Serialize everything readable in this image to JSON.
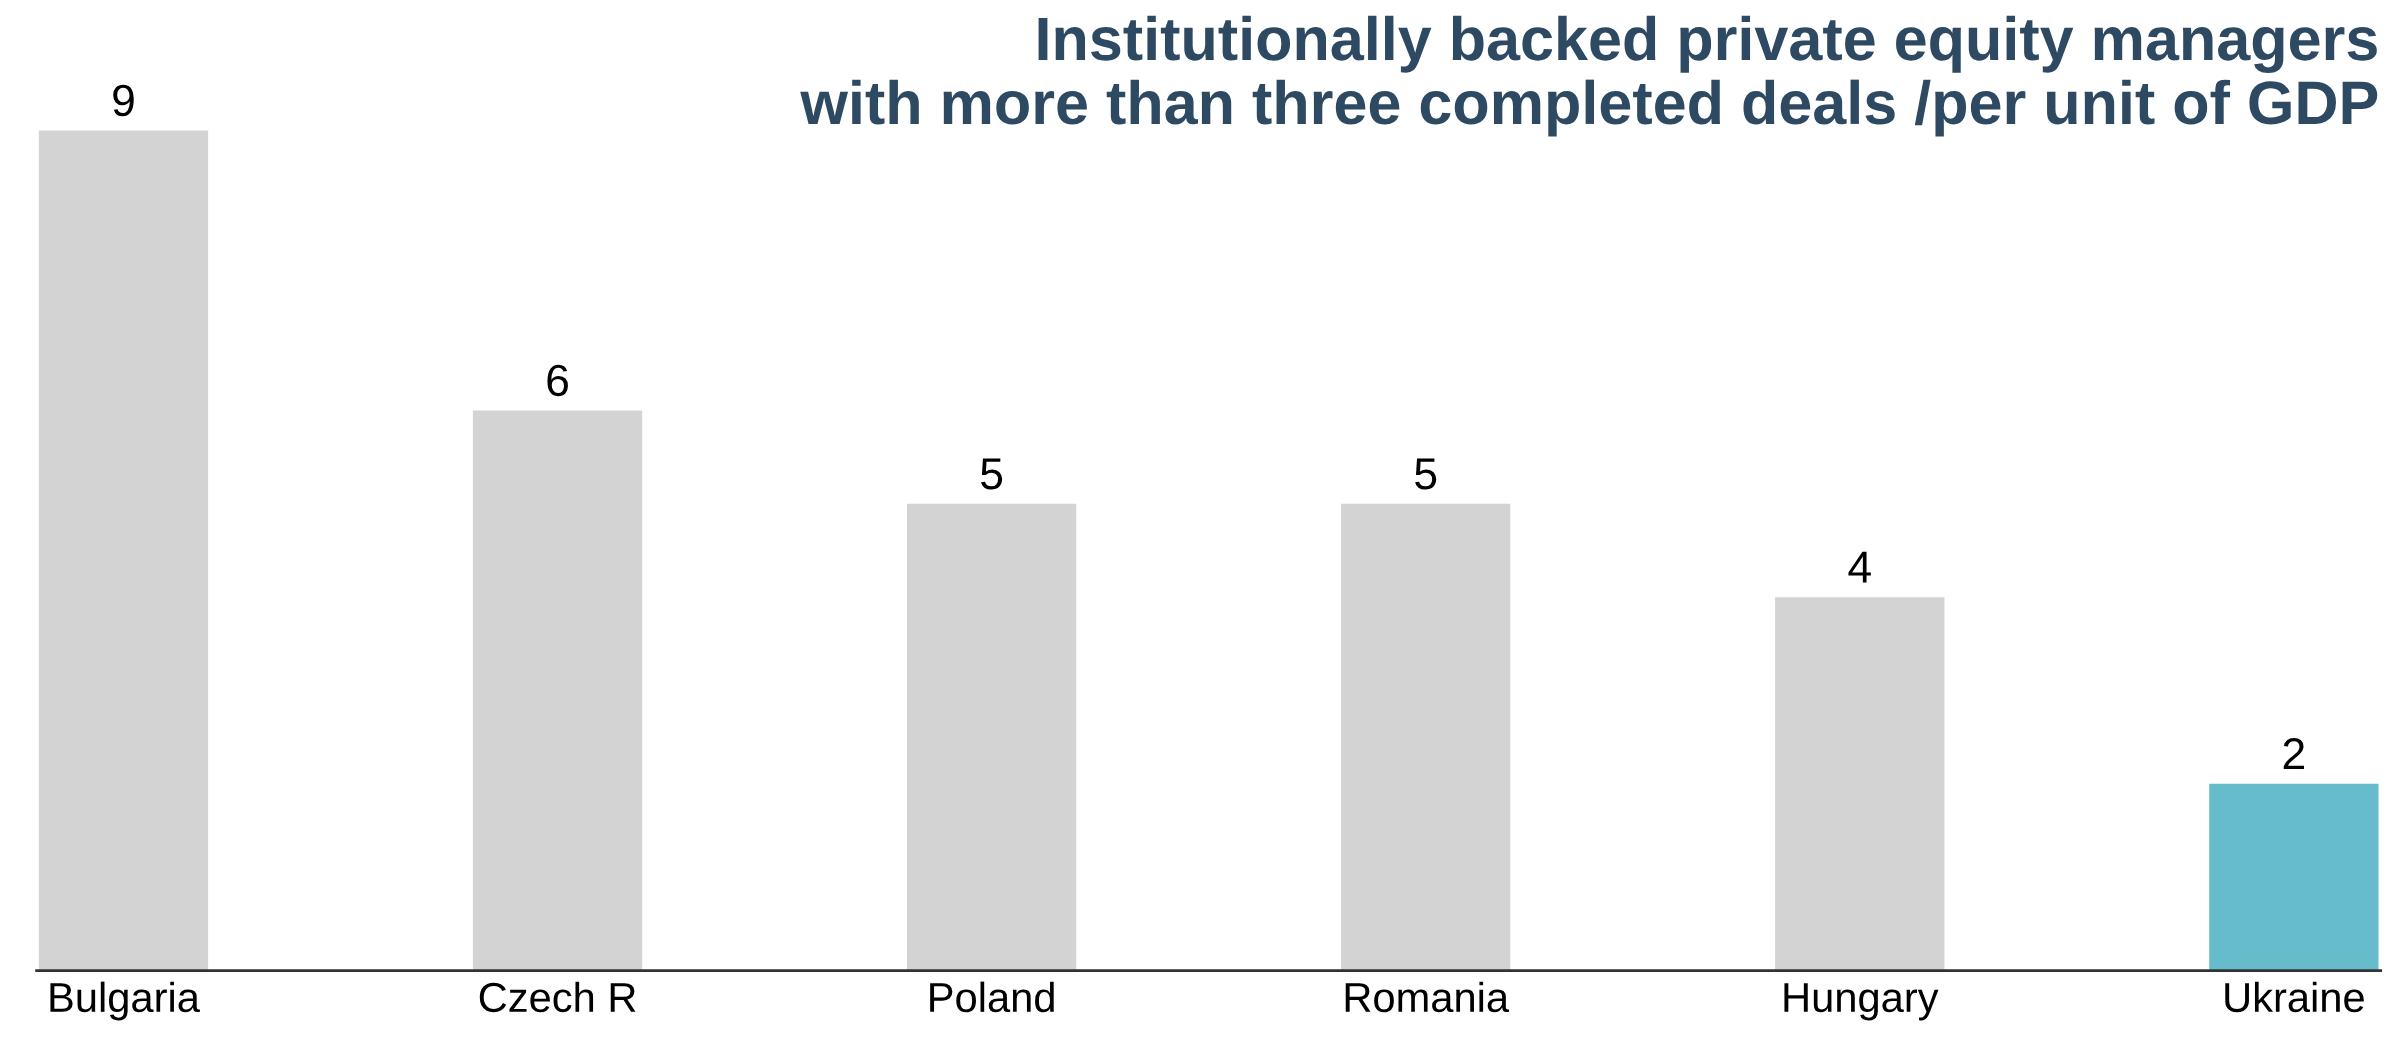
{
  "chart_data": {
    "type": "bar",
    "title": "Institutionally backed private equity managers\nwith more than three completed deals /per unit of GDP",
    "categories": [
      "Bulgaria",
      "Czech R",
      "Poland",
      "Romania",
      "Hungary",
      "Ukraine"
    ],
    "values": [
      9,
      6,
      5,
      5,
      4,
      2
    ],
    "colors": [
      "#d3d3d3",
      "#d3d3d3",
      "#d3d3d3",
      "#d3d3d3",
      "#d3d3d3",
      "#67bccc"
    ],
    "data_labels": true,
    "grid": false,
    "legend": false
  }
}
